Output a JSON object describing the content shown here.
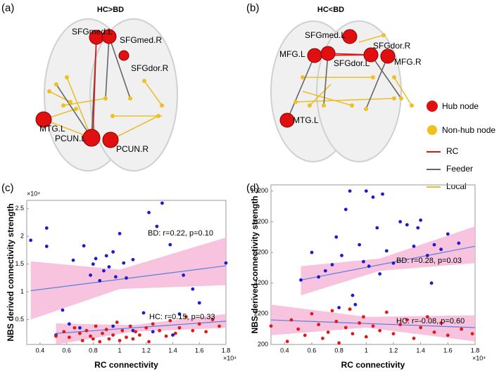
{
  "brain_panels": [
    {
      "letter": "(a)",
      "title": "HC>BD",
      "nodes": [
        "SFGmed.L",
        "SFGmed.R",
        "SFGdor.R",
        "MTG.L",
        "PCUN.L",
        "PCUN.R"
      ]
    },
    {
      "letter": "(b)",
      "title": "HC<BD",
      "nodes": [
        "SFGmed.L",
        "MFG.L",
        "SFGdor.L",
        "SFGdor.R",
        "MFG.R",
        "MTG.L"
      ]
    }
  ],
  "legend": {
    "hub": "Hub node",
    "hub_color": "#e01010",
    "nonhub": "Non-hub node",
    "nonhub_color": "#f0c020",
    "rc": "RC",
    "rc_color": "#d81818",
    "feeder": "Feeder",
    "feeder_color": "#666666",
    "local": "Local",
    "local_color": "#e8c030"
  },
  "chart_data": [
    {
      "type": "scatter",
      "letter": "(c)",
      "x_label": "RC connectivity",
      "y_label": "NBS derived connectivity strength",
      "x_multiplier": "×10⁴",
      "y_multiplier": "×10⁴",
      "xlim": [
        0.3,
        1.8
      ],
      "xticks": [
        0.4,
        0.6,
        0.8,
        1,
        1.2,
        1.4,
        1.6,
        1.8
      ],
      "ylim": [
        0.05,
        2.65
      ],
      "yticks": [
        0.5,
        1,
        1.5,
        2,
        2.5
      ],
      "band_color": "#f7b8d8",
      "series": [
        {
          "color": "#1c1ccc",
          "x": [
            0.33,
            0.45,
            0.45,
            0.57,
            0.52,
            0.65,
            0.73,
            0.78,
            0.8,
            0.82,
            0.85,
            0.88,
            0.9,
            0.92,
            0.95,
            0.97,
            1.0,
            1.03,
            1.05,
            1.1,
            1.18,
            1.22,
            1.28,
            1.32,
            1.38,
            1.45,
            1.48,
            1.55,
            1.6,
            1.8,
            0.62,
            0.7,
            0.95,
            1.1,
            1.25,
            1.4
          ],
          "values": [
            1.93,
            2.15,
            1.82,
            0.67,
            0.22,
            1.57,
            1.83,
            1.3,
            1.5,
            1.6,
            1.2,
            1.38,
            1.65,
            1.45,
            1.72,
            1.27,
            2.05,
            1.52,
            1.25,
            1.58,
            0.62,
            2.43,
            2.18,
            2.6,
            1.85,
            0.6,
            1.3,
            1.05,
            0.8,
            1.52,
            0.42,
            0.35,
            0.38,
            0.3,
            0.28,
            0.22
          ]
        },
        {
          "color": "#dd1a1a",
          "x": [
            0.52,
            0.58,
            0.62,
            0.66,
            0.7,
            0.72,
            0.75,
            0.78,
            0.8,
            0.82,
            0.85,
            0.87,
            0.9,
            0.92,
            0.95,
            0.98,
            1.0,
            1.02,
            1.05,
            1.08,
            1.1,
            1.12,
            1.15,
            1.2,
            1.22,
            1.25,
            1.3,
            1.35,
            1.38,
            1.42,
            1.45,
            1.5,
            1.55,
            1.6,
            1.65,
            1.7,
            1.75
          ],
          "values": [
            0.2,
            0.28,
            0.18,
            0.35,
            0.25,
            0.12,
            0.3,
            0.2,
            0.15,
            0.38,
            0.1,
            0.25,
            0.32,
            0.15,
            0.22,
            0.45,
            0.12,
            0.3,
            0.18,
            0.38,
            0.15,
            0.28,
            0.22,
            0.35,
            0.1,
            0.42,
            0.3,
            0.2,
            0.48,
            0.25,
            0.35,
            0.55,
            0.3,
            0.42,
            0.28,
            0.5,
            0.38
          ]
        }
      ],
      "fits": [
        {
          "color": "#5b7fd6",
          "x": [
            0.33,
            1.8
          ],
          "values": [
            1.02,
            1.47
          ],
          "band_x": [
            0.33,
            1.0,
            1.8
          ],
          "band_lower": [
            0.5,
            1.05,
            1.12
          ],
          "band_upper": [
            1.55,
            1.4,
            1.98
          ]
        },
        {
          "color": "#5b7fd6",
          "x": [
            0.52,
            1.8
          ],
          "values": [
            0.25,
            0.47
          ],
          "band_x": [
            0.52,
            1.1,
            1.8
          ],
          "band_lower": [
            0.05,
            0.28,
            0.35
          ],
          "band_upper": [
            0.43,
            0.4,
            0.6
          ]
        }
      ],
      "annotations": [
        {
          "text": "BD: r=0.22, p=0.10",
          "color": "#1c1ccc"
        },
        {
          "text": "HC: r=0.15, p=0.33",
          "color": "#dd1a1a"
        }
      ]
    },
    {
      "type": "scatter",
      "letter": "(d)",
      "x_label": "RC connectivity",
      "y_label": "NBS derived connectivity strength",
      "x_multiplier": "×10⁴",
      "xlim": [
        0.3,
        1.8
      ],
      "xticks": [
        0.4,
        0.6,
        0.8,
        1,
        1.2,
        1.4,
        1.6,
        1.8
      ],
      "ylim": [
        200,
        10600
      ],
      "yticks": [
        200,
        2200,
        4200,
        6200,
        8200,
        10200
      ],
      "band_color": "#f7b8d8",
      "series": [
        {
          "color": "#1c1ccc",
          "x": [
            0.52,
            0.6,
            0.65,
            0.7,
            0.75,
            0.78,
            0.82,
            0.85,
            0.88,
            0.9,
            0.92,
            0.95,
            0.98,
            1.0,
            1.02,
            1.05,
            1.08,
            1.1,
            1.12,
            1.15,
            1.2,
            1.25,
            1.3,
            1.35,
            1.38,
            1.4,
            1.45,
            1.48,
            1.5,
            1.55,
            1.6,
            1.68,
            0.8,
            0.88
          ],
          "values": [
            4400,
            6200,
            4600,
            5000,
            5400,
            7200,
            6000,
            9000,
            10200,
            3400,
            2800,
            6700,
            5600,
            10200,
            5300,
            9800,
            7800,
            4800,
            10000,
            6300,
            5500,
            8200,
            8000,
            6600,
            7800,
            8300,
            6000,
            4200,
            6700,
            6400,
            7400,
            6800,
            2600,
            2500
          ]
        },
        {
          "color": "#dd1a1a",
          "x": [
            0.3,
            0.42,
            0.45,
            0.5,
            0.55,
            0.6,
            0.65,
            0.68,
            0.72,
            0.75,
            0.78,
            0.8,
            0.85,
            0.88,
            0.9,
            0.95,
            0.98,
            1.0,
            1.05,
            1.1,
            1.15,
            1.2,
            1.25,
            1.3,
            1.35,
            1.4,
            1.45,
            1.5,
            1.55,
            1.6,
            1.7,
            1.78
          ],
          "values": [
            1400,
            400,
            1800,
            1200,
            800,
            2200,
            1500,
            600,
            1000,
            2400,
            1700,
            300,
            1300,
            2500,
            900,
            1600,
            2000,
            700,
            1400,
            1100,
            2300,
            900,
            1500,
            1800,
            600,
            1300,
            2000,
            1000,
            1600,
            800,
            1200,
            900
          ]
        }
      ],
      "fits": [
        {
          "color": "#5b7fd6",
          "x": [
            0.52,
            1.8
          ],
          "values": [
            4400,
            6600
          ],
          "band_x": [
            0.52,
            1.1,
            1.8
          ],
          "band_lower": [
            3400,
            5000,
            5500
          ],
          "band_upper": [
            5300,
            5800,
            7900
          ]
        },
        {
          "color": "#5b7fd6",
          "x": [
            0.3,
            1.8
          ],
          "values": [
            1800,
            1300
          ],
          "band_x": [
            0.3,
            1.0,
            1.8
          ],
          "band_lower": [
            800,
            1300,
            400
          ],
          "band_upper": [
            2800,
            2000,
            2100
          ]
        }
      ],
      "annotations": [
        {
          "text": "BD: r=0.28, p=0.03",
          "color": "#1c1ccc"
        },
        {
          "text": "HC: r=-0.08, p=0.60",
          "color": "#dd1a1a"
        }
      ]
    }
  ]
}
